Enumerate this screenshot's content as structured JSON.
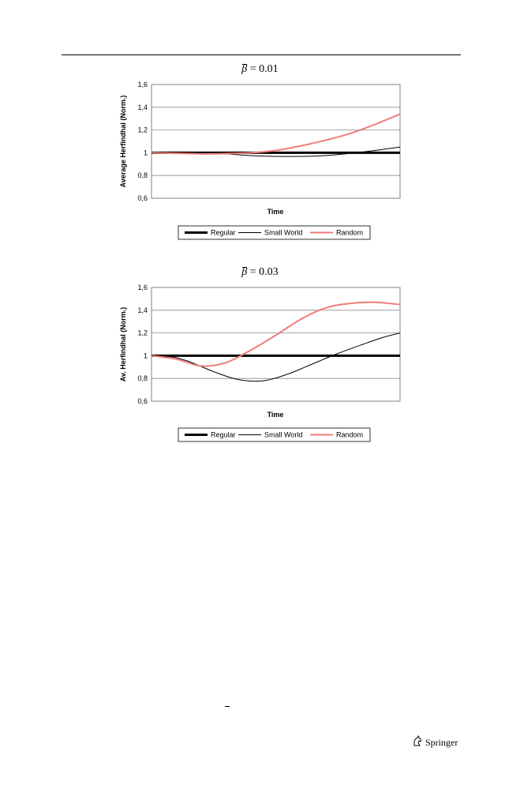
{
  "publisher": {
    "name": "Springer",
    "logo_icon": "springer-knight-icon"
  },
  "charts": [
    {
      "title_symbol": "β",
      "title_value": " = 0.01",
      "ylabel": "Average Herfindhal (Norm.)",
      "xlabel": "Time",
      "ytick_labels": [
        "0,6",
        "0,8",
        "1",
        "1,2",
        "1,4",
        "1,6"
      ],
      "legend": [
        "Regular",
        "Small World",
        "Random"
      ]
    },
    {
      "title_symbol": "β",
      "title_value": " = 0.03",
      "ylabel": "Av. Herfindhal (Norm.)",
      "xlabel": "Time",
      "ytick_labels": [
        "0,6",
        "0,8",
        "1",
        "1,2",
        "1,4",
        "1,6"
      ],
      "legend": [
        "Regular",
        "Small World",
        "Random"
      ]
    }
  ],
  "chart_data": [
    {
      "type": "line",
      "ylim": [
        0.6,
        1.6
      ],
      "yticks": [
        0.6,
        0.8,
        1.0,
        1.2,
        1.4,
        1.6
      ],
      "xlim": [
        0,
        1
      ],
      "grid": true,
      "legend_position": "bottom",
      "colors": {
        "Regular": "#000000",
        "Small World": "#000000",
        "Random": "#f07c7c"
      },
      "series": [
        {
          "name": "Regular",
          "x": [
            0,
            1
          ],
          "y": [
            1.0,
            1.0
          ]
        },
        {
          "name": "Small World",
          "x": [
            0,
            0.1,
            0.2,
            0.3,
            0.4,
            0.5,
            0.6,
            0.7,
            0.8,
            0.9,
            1.0
          ],
          "y": [
            1.0,
            1.0,
            0.995,
            0.99,
            0.975,
            0.968,
            0.968,
            0.975,
            0.995,
            1.02,
            1.05
          ]
        },
        {
          "name": "Random",
          "x": [
            0,
            0.1,
            0.2,
            0.3,
            0.4,
            0.5,
            0.6,
            0.7,
            0.8,
            0.9,
            1.0
          ],
          "y": [
            1.0,
            0.995,
            0.99,
            0.992,
            1.0,
            1.02,
            1.06,
            1.11,
            1.17,
            1.25,
            1.34
          ]
        }
      ]
    },
    {
      "type": "line",
      "ylim": [
        0.6,
        1.6
      ],
      "yticks": [
        0.6,
        0.8,
        1.0,
        1.2,
        1.4,
        1.6
      ],
      "xlim": [
        0,
        1
      ],
      "grid": true,
      "legend_position": "bottom",
      "colors": {
        "Regular": "#000000",
        "Small World": "#000000",
        "Random": "#f07c7c"
      },
      "series": [
        {
          "name": "Regular",
          "x": [
            0,
            1
          ],
          "y": [
            1.0,
            1.0
          ]
        },
        {
          "name": "Small World",
          "x": [
            0,
            0.08,
            0.15,
            0.25,
            0.35,
            0.45,
            0.55,
            0.65,
            0.75,
            0.85,
            0.93,
            1.0
          ],
          "y": [
            1.0,
            0.99,
            0.95,
            0.86,
            0.79,
            0.78,
            0.84,
            0.93,
            1.02,
            1.1,
            1.16,
            1.2
          ]
        },
        {
          "name": "Random",
          "x": [
            0,
            0.1,
            0.2,
            0.3,
            0.4,
            0.5,
            0.6,
            0.7,
            0.8,
            0.9,
            1.0
          ],
          "y": [
            1.0,
            0.97,
            0.91,
            0.94,
            1.05,
            1.18,
            1.32,
            1.42,
            1.46,
            1.47,
            1.45
          ]
        }
      ]
    }
  ]
}
